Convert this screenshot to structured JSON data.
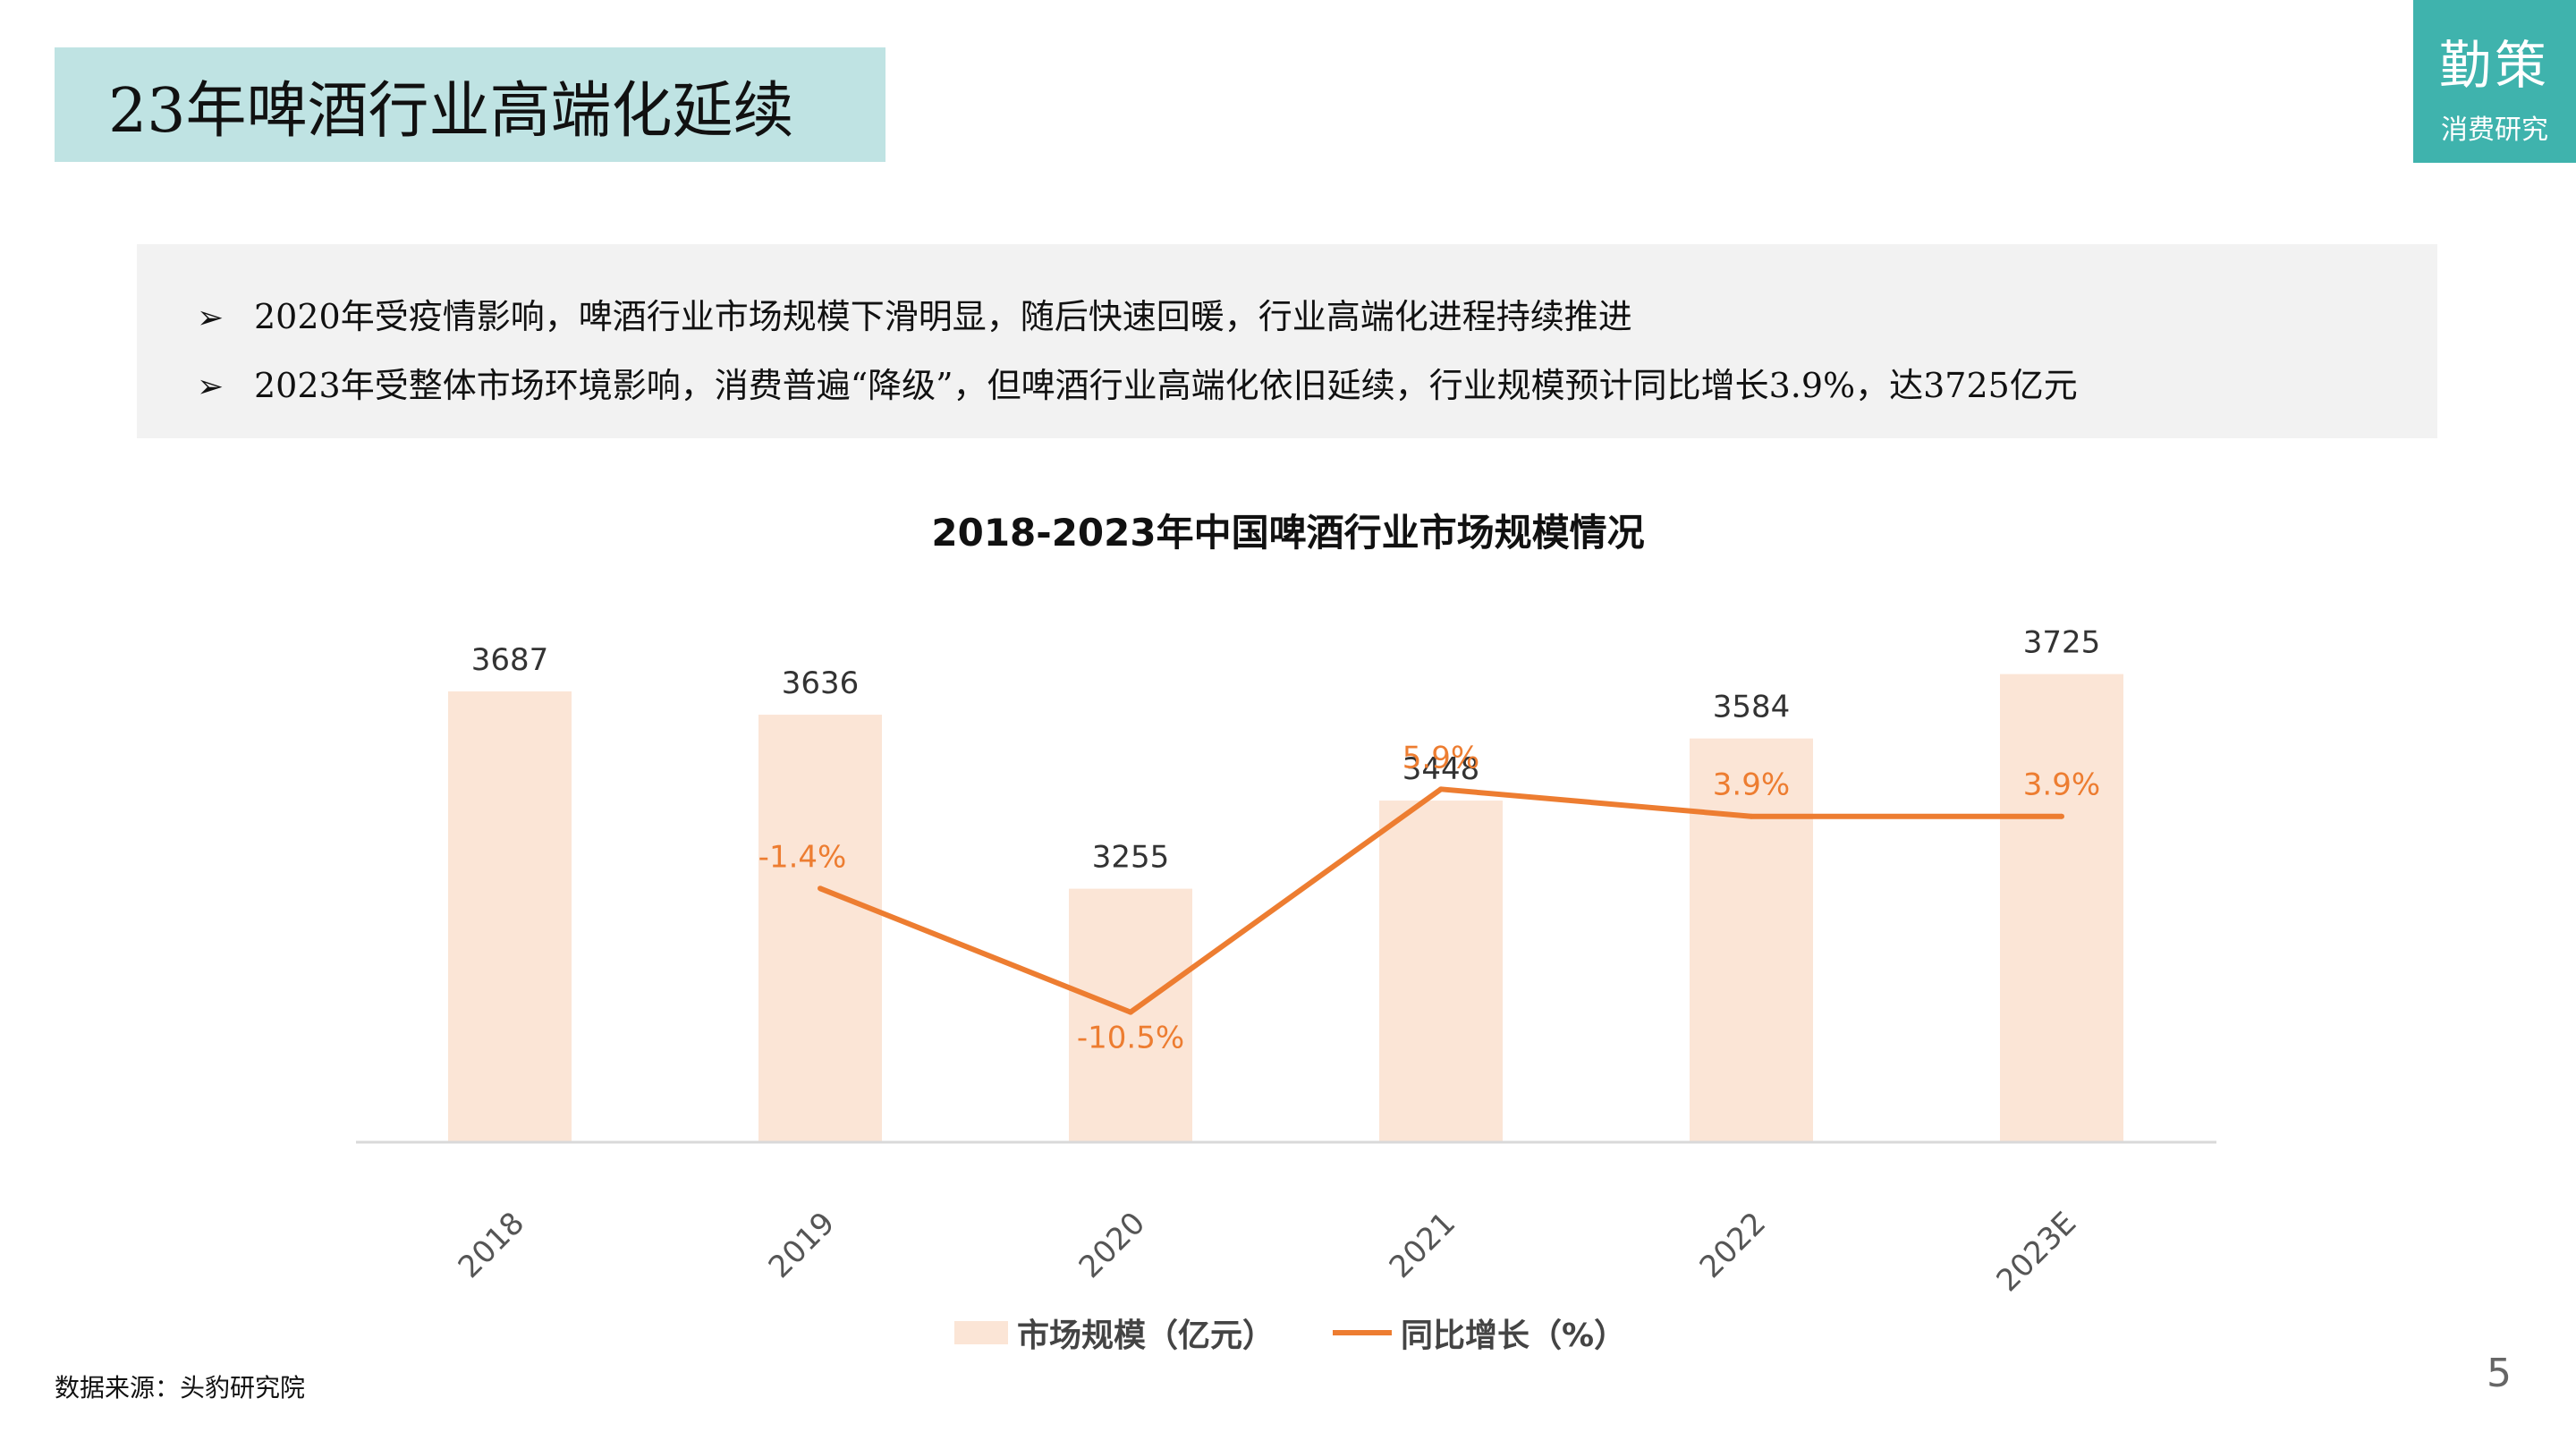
{
  "header": {
    "title": "23年啤酒行业高端化延续"
  },
  "logo": {
    "main": "勤策",
    "sub": "消费研究"
  },
  "bullets": [
    "2020年受疫情影响，啤酒行业市场规模下滑明显，随后快速回暖，行业高端化进程持续推进",
    "2023年受整体市场环境影响，消费普遍“降级”，但啤酒行业高端化依旧延续，行业规模预计同比增长3.9%，达3725亿元"
  ],
  "bullet_marker": "➢",
  "chart_data": {
    "type": "bar+line",
    "title": "2018-2023年中国啤酒行业市场规模情况",
    "categories": [
      "2018",
      "2019",
      "2020",
      "2021",
      "2022",
      "2023E"
    ],
    "series": [
      {
        "name": "市场规模（亿元）",
        "type": "bar",
        "color": "#fbe5d6",
        "values": [
          3687,
          3636,
          3255,
          3448,
          3584,
          3725
        ],
        "labels": [
          "3687",
          "3636",
          "3255",
          "3448",
          "3584",
          "3725"
        ]
      },
      {
        "name": "同比增长（%）",
        "type": "line",
        "color": "#ed7d31",
        "values": [
          null,
          -1.4,
          -10.5,
          5.9,
          3.9,
          3.9
        ],
        "labels": [
          "",
          "-1.4%",
          "-10.5%",
          "5.9%",
          "3.9%",
          "3.9%"
        ]
      }
    ],
    "grid": false,
    "legend": "bottom"
  },
  "source": "数据来源：头豹研究院",
  "page_number": "5"
}
